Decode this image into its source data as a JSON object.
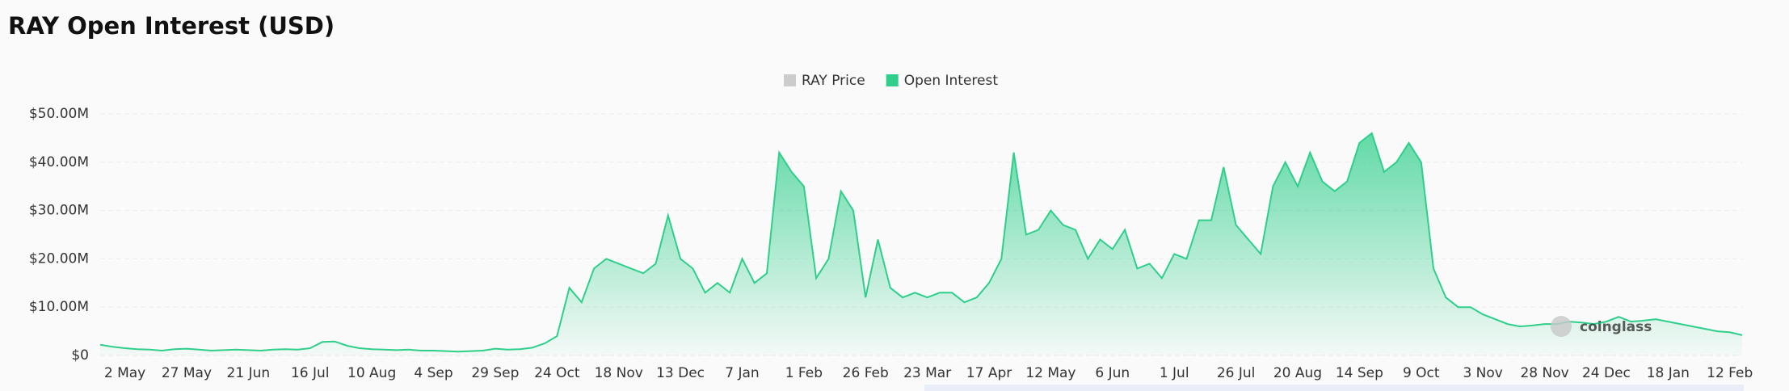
{
  "chart_data": {
    "type": "area",
    "title": "RAY Open Interest (USD)",
    "watermark": "coinglass",
    "categories": [
      null,
      null,
      "2 May",
      null,
      null,
      null,
      null,
      "27 May",
      null,
      null,
      null,
      null,
      "21 Jun",
      null,
      null,
      null,
      null,
      "16 Jul",
      null,
      null,
      null,
      null,
      "10 Aug",
      null,
      null,
      null,
      null,
      "4 Sep",
      null,
      null,
      null,
      null,
      "29 Sep",
      null,
      null,
      null,
      null,
      "24 Oct",
      null,
      null,
      null,
      null,
      "18 Nov",
      null,
      null,
      null,
      null,
      "13 Dec",
      null,
      null,
      null,
      null,
      "7 Jan",
      null,
      null,
      null,
      null,
      "1 Feb",
      null,
      null,
      null,
      null,
      "26 Feb",
      null,
      null,
      null,
      null,
      "23 Mar",
      null,
      null,
      null,
      null,
      "17 Apr",
      null,
      null,
      null,
      null,
      "12 May",
      null,
      null,
      null,
      null,
      "6 Jun",
      null,
      null,
      null,
      null,
      "1 Jul",
      null,
      null,
      null,
      null,
      "26 Jul",
      null,
      null,
      null,
      null,
      "20 Aug",
      null,
      null,
      null,
      null,
      "14 Sep",
      null,
      null,
      null,
      null,
      "9 Oct",
      null,
      null,
      null,
      null,
      "3 Nov",
      null,
      null,
      null,
      null,
      "28 Nov",
      null,
      null,
      null,
      null,
      "24 Dec",
      null,
      null,
      null,
      null,
      "18 Jan",
      null,
      null,
      null,
      null,
      "12 Feb",
      null
    ],
    "series": [
      {
        "name": "RAY Price",
        "color": "#cccccc",
        "hidden": true
      },
      {
        "name": "Open Interest",
        "color": "#2fcf8b",
        "values": [
          2200000,
          1800000,
          1500000,
          1300000,
          1200000,
          1000000,
          1300000,
          1400000,
          1200000,
          1000000,
          1100000,
          1200000,
          1100000,
          1000000,
          1200000,
          1300000,
          1200000,
          1500000,
          2800000,
          2900000,
          2000000,
          1500000,
          1300000,
          1200000,
          1100000,
          1200000,
          1000000,
          1000000,
          900000,
          800000,
          900000,
          1000000,
          1400000,
          1200000,
          1300000,
          1600000,
          2500000,
          4000000,
          14000000,
          11000000,
          18000000,
          20000000,
          19000000,
          18000000,
          17000000,
          19000000,
          29000000,
          20000000,
          18000000,
          13000000,
          15000000,
          13000000,
          20000000,
          15000000,
          17000000,
          42000000,
          38000000,
          35000000,
          16000000,
          20000000,
          34000000,
          30000000,
          12000000,
          24000000,
          14000000,
          12000000,
          13000000,
          12000000,
          13000000,
          13000000,
          11000000,
          12000000,
          15000000,
          20000000,
          42000000,
          25000000,
          26000000,
          30000000,
          27000000,
          26000000,
          20000000,
          24000000,
          22000000,
          26000000,
          18000000,
          19000000,
          16000000,
          21000000,
          20000000,
          28000000,
          28000000,
          39000000,
          27000000,
          24000000,
          21000000,
          35000000,
          40000000,
          35000000,
          42000000,
          36000000,
          34000000,
          36000000,
          44000000,
          46000000,
          38000000,
          40000000,
          44000000,
          40000000,
          18000000,
          12000000,
          10000000,
          10000000,
          8500000,
          7500000,
          6500000,
          6000000,
          6200000,
          6500000,
          6500000,
          7000000,
          6800000,
          6500000,
          7000000,
          8000000,
          7000000,
          7200000,
          7500000,
          7000000,
          6500000,
          6000000,
          5500000,
          5000000,
          4800000,
          4200000
        ]
      }
    ],
    "ylim": [
      0,
      50000000
    ],
    "yticks": [
      {
        "value": 0,
        "label": "$0"
      },
      {
        "value": 10000000,
        "label": "$10.00M"
      },
      {
        "value": 20000000,
        "label": "$20.00M"
      },
      {
        "value": 30000000,
        "label": "$30.00M"
      },
      {
        "value": 40000000,
        "label": "$40.00M"
      },
      {
        "value": 50000000,
        "label": "$50.00M"
      }
    ],
    "grid": true
  }
}
